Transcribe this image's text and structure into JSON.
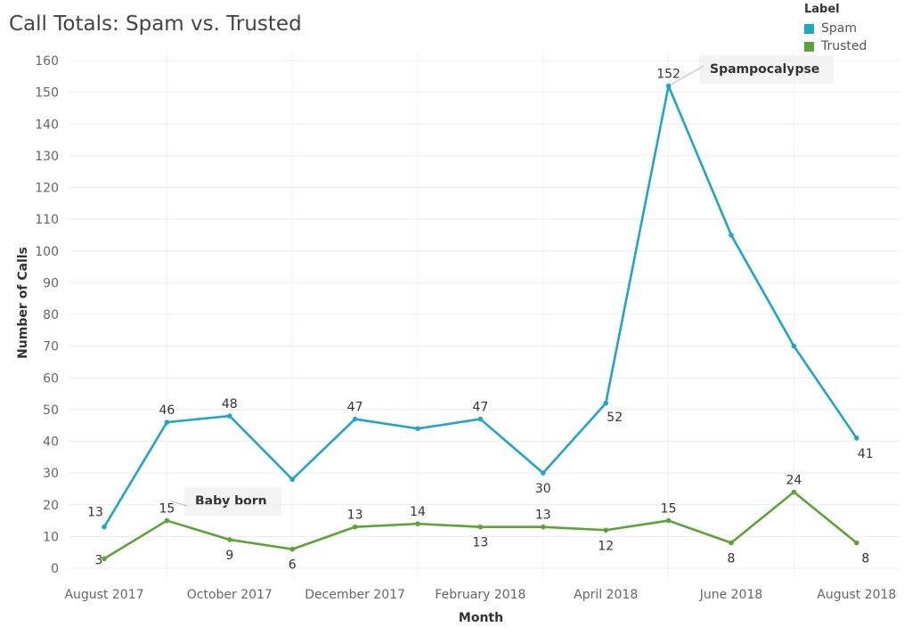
{
  "chart_data": {
    "type": "line",
    "title": "Call Totals: Spam vs. Trusted",
    "xlabel": "Month",
    "ylabel": "Number of Calls",
    "ylim": [
      0,
      160
    ],
    "yticks": [
      0,
      10,
      20,
      30,
      40,
      50,
      60,
      70,
      80,
      90,
      100,
      110,
      120,
      130,
      140,
      150,
      160
    ],
    "x": [
      "2017-08",
      "2017-09",
      "2017-10",
      "2017-11",
      "2017-12",
      "2018-01",
      "2018-02",
      "2018-03",
      "2018-04",
      "2018-05",
      "2018-06",
      "2018-07",
      "2018-08"
    ],
    "xtick_labels": [
      "August 2017",
      "October 2017",
      "December 2017",
      "February 2018",
      "April 2018",
      "June 2018",
      "August 2018"
    ],
    "xtick_months": [
      "2017-08",
      "2017-10",
      "2017-12",
      "2018-02",
      "2018-04",
      "2018-06",
      "2018-08"
    ],
    "grid": true,
    "legend": {
      "title": "Label",
      "position": "top-right"
    },
    "series": [
      {
        "name": "Spam",
        "color": "#1fa5c6",
        "values": [
          13,
          46,
          48,
          28,
          47,
          44,
          47,
          30,
          52,
          152,
          105,
          70,
          41
        ],
        "labeled_points": [
          {
            "index": 0,
            "label": "13"
          },
          {
            "index": 1,
            "label": "46"
          },
          {
            "index": 2,
            "label": "48"
          },
          {
            "index": 4,
            "label": "47"
          },
          {
            "index": 6,
            "label": "47"
          },
          {
            "index": 7,
            "label": "30"
          },
          {
            "index": 8,
            "label": "52"
          },
          {
            "index": 9,
            "label": "152"
          },
          {
            "index": 12,
            "label": "41"
          }
        ]
      },
      {
        "name": "Trusted",
        "color": "#5aa436",
        "values": [
          3,
          15,
          9,
          6,
          13,
          14,
          13,
          13,
          12,
          15,
          8,
          24,
          8
        ],
        "labeled_points": [
          {
            "index": 0,
            "label": "3"
          },
          {
            "index": 1,
            "label": "15"
          },
          {
            "index": 2,
            "label": "9"
          },
          {
            "index": 3,
            "label": "6"
          },
          {
            "index": 4,
            "label": "13"
          },
          {
            "index": 5,
            "label": "14"
          },
          {
            "index": 6,
            "label": "13"
          },
          {
            "index": 7,
            "label": "13"
          },
          {
            "index": 8,
            "label": "12"
          },
          {
            "index": 9,
            "label": "15"
          },
          {
            "index": 10,
            "label": "8"
          },
          {
            "index": 11,
            "label": "24"
          },
          {
            "index": 12,
            "label": "8"
          }
        ]
      }
    ],
    "annotations": [
      {
        "text": "Spampocalypse",
        "series": "Spam",
        "index": 9
      },
      {
        "text": "Baby born",
        "series": "Trusted",
        "index": 1
      }
    ]
  }
}
